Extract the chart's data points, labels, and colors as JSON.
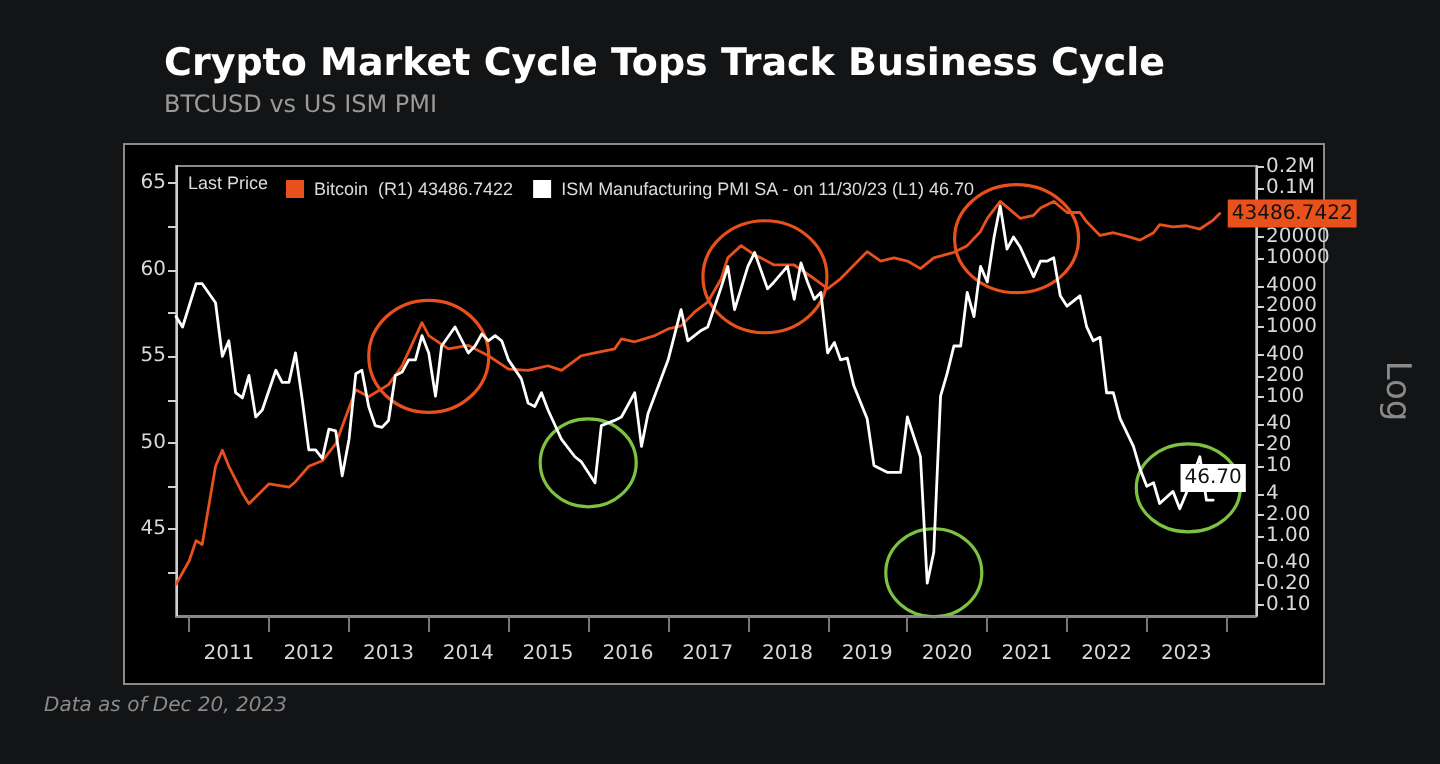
{
  "chart_data": {
    "type": "line",
    "title": "Crypto Market Cycle Tops Track Business Cycle",
    "subtitle": "BTCUSD vs US ISM PMI",
    "legend_title": "Last Price",
    "y2label": "Log",
    "legend": "top left",
    "marker": "none",
    "grid": false,
    "xlim": [
      "2010-11-01",
      "2024-05-15"
    ],
    "xticks": [
      {
        "value": "2011-01-01",
        "label": null
      },
      {
        "value": "2011-07-01",
        "label": "2011"
      },
      {
        "value": "2012-01-01",
        "label": null
      },
      {
        "value": "2012-07-01",
        "label": "2012"
      },
      {
        "value": "2013-01-01",
        "label": null
      },
      {
        "value": "2013-07-01",
        "label": "2013"
      },
      {
        "value": "2014-01-01",
        "label": null
      },
      {
        "value": "2014-07-01",
        "label": "2014"
      },
      {
        "value": "2015-01-01",
        "label": null
      },
      {
        "value": "2015-07-01",
        "label": "2015"
      },
      {
        "value": "2016-01-01",
        "label": null
      },
      {
        "value": "2016-07-01",
        "label": "2016"
      },
      {
        "value": "2017-01-01",
        "label": null
      },
      {
        "value": "2017-07-01",
        "label": "2017"
      },
      {
        "value": "2018-01-01",
        "label": null
      },
      {
        "value": "2018-07-01",
        "label": "2018"
      },
      {
        "value": "2019-01-01",
        "label": null
      },
      {
        "value": "2019-07-01",
        "label": "2019"
      },
      {
        "value": "2020-01-01",
        "label": null
      },
      {
        "value": "2020-07-01",
        "label": "2020"
      },
      {
        "value": "2021-01-01",
        "label": null
      },
      {
        "value": "2021-07-01",
        "label": "2021"
      },
      {
        "value": "2022-01-01",
        "label": null
      },
      {
        "value": "2022-07-01",
        "label": "2022"
      },
      {
        "value": "2023-01-01",
        "label": null
      },
      {
        "value": "2023-07-01",
        "label": "2023"
      },
      {
        "value": "2024-01-01",
        "label": null
      }
    ],
    "ylim": [
      40,
      66
    ],
    "yticks": [
      {
        "value": 42.5,
        "label": null
      },
      45,
      {
        "value": 47.5,
        "label": null
      },
      50,
      {
        "value": 52.5,
        "label": null
      },
      55,
      {
        "value": 57.5,
        "label": null
      },
      60,
      {
        "value": 62.5,
        "label": null
      },
      65
    ],
    "log": "y2",
    "y2lim": [
      0.07,
      210000
    ],
    "y2ticks": [
      {
        "value": 0.1,
        "label": "0.10"
      },
      {
        "value": 0.2,
        "label": "0.20"
      },
      {
        "value": 0.4,
        "label": "0.40"
      },
      {
        "value": 1,
        "label": "1.00"
      },
      {
        "value": 2,
        "label": "2.00"
      },
      4,
      10,
      20,
      40,
      100,
      200,
      400,
      1000,
      2000,
      4000,
      10000,
      20000,
      {
        "value": 100000,
        "label": "0.1M"
      },
      {
        "value": 200000,
        "label": "0.2M"
      }
    ],
    "annotations": [
      "Data as of Dec 20, 2023"
    ],
    "series": [
      {
        "name": "Bitcoin  (R1) 43486.7422",
        "color": "#e8501c",
        "axis": "y2",
        "x": [
          "2010-11",
          "2011-01",
          "2011-02",
          "2011-03",
          "2011-05",
          "2011-06",
          "2011-07",
          "2011-09",
          "2011-10",
          "2012-01",
          "2012-04",
          "2012-05",
          "2012-07",
          "2012-09",
          "2012-11",
          "2013-02",
          "2013-04",
          "2013-07",
          "2013-09",
          "2013-12",
          "2014-01",
          "2014-04",
          "2014-07",
          "2014-10",
          "2015-01",
          "2015-04",
          "2015-07",
          "2015-09",
          "2015-12",
          "2016-02",
          "2016-05",
          "2016-06",
          "2016-08",
          "2016-11",
          "2017-01",
          "2017-03",
          "2017-05",
          "2017-07",
          "2017-09",
          "2017-10",
          "2017-12",
          "2018-02",
          "2018-03",
          "2018-05",
          "2018-08",
          "2018-11",
          "2019-01",
          "2019-03",
          "2019-07",
          "2019-09",
          "2019-11",
          "2020-01",
          "2020-03",
          "2020-05",
          "2020-08",
          "2020-10",
          "2020-12",
          "2021-01",
          "2021-03",
          "2021-06",
          "2021-08",
          "2021-09",
          "2021-11",
          "2022-01",
          "2022-03",
          "2022-04",
          "2022-06",
          "2022-08",
          "2022-10",
          "2022-12",
          "2023-02",
          "2023-03",
          "2023-05",
          "2023-07",
          "2023-09",
          "2023-11",
          "2023-12"
        ],
        "values": [
          0.2,
          0.44,
          0.85,
          0.75,
          10,
          17,
          10,
          4.1,
          2.9,
          5.6,
          5,
          6,
          10,
          12,
          21,
          126,
          100,
          150,
          280,
          1170,
          760,
          490,
          550,
          390,
          250,
          240,
          280,
          240,
          390,
          430,
          490,
          680,
          620,
          760,
          950,
          1050,
          1650,
          2300,
          5000,
          10000,
          15000,
          11000,
          10000,
          7900,
          7900,
          5000,
          3600,
          5000,
          12300,
          9000,
          10000,
          9000,
          7000,
          10000,
          12000,
          15000,
          24000,
          37000,
          65000,
          37000,
          41000,
          52000,
          65000,
          45000,
          45000,
          33000,
          21000,
          23000,
          20500,
          18000,
          23000,
          30000,
          28000,
          29000,
          26000,
          35000,
          43486.7422
        ],
        "value_labels": [
          null,
          null,
          null,
          null,
          null,
          null,
          null,
          null,
          null,
          null,
          null,
          null,
          null,
          null,
          null,
          null,
          null,
          null,
          null,
          null,
          null,
          null,
          null,
          null,
          null,
          null,
          null,
          null,
          null,
          null,
          null,
          null,
          null,
          null,
          null,
          null,
          null,
          null,
          null,
          null,
          null,
          null,
          null,
          null,
          null,
          null,
          null,
          null,
          null,
          null,
          null,
          null,
          null,
          null,
          null,
          null,
          null,
          null,
          null,
          null,
          null,
          null,
          null,
          null,
          null,
          null,
          null,
          null,
          null,
          null,
          null,
          null,
          null,
          null,
          null,
          null,
          "43486.7422"
        ]
      },
      {
        "name": "ISM Manufacturing PMI SA - on 11/30/23 (L1) 46.70",
        "color": "#ffffff",
        "x": [
          "2010-11",
          "2010-12",
          "2011-02",
          "2011-03",
          "2011-05",
          "2011-06",
          "2011-07",
          "2011-08",
          "2011-09",
          "2011-10",
          "2011-11",
          "2011-12",
          "2012-02",
          "2012-03",
          "2012-04",
          "2012-05",
          "2012-06",
          "2012-07",
          "2012-08",
          "2012-09",
          "2012-10",
          "2012-11",
          "2012-12",
          "2013-01",
          "2013-02",
          "2013-03",
          "2013-04",
          "2013-05",
          "2013-06",
          "2013-07",
          "2013-08",
          "2013-09",
          "2013-10",
          "2013-11",
          "2013-12",
          "2014-01",
          "2014-02",
          "2014-03",
          "2014-05",
          "2014-07",
          "2014-08",
          "2014-09",
          "2014-10",
          "2014-11",
          "2014-12",
          "2015-01",
          "2015-03",
          "2015-04",
          "2015-05",
          "2015-06",
          "2015-07",
          "2015-09",
          "2015-11",
          "2015-12",
          "2016-02",
          "2016-03",
          "2016-05",
          "2016-06",
          "2016-08",
          "2016-09",
          "2016-10",
          "2017-01",
          "2017-03",
          "2017-04",
          "2017-06",
          "2017-07",
          "2017-09",
          "2017-10",
          "2017-11",
          "2018-01",
          "2018-02",
          "2018-04",
          "2018-05",
          "2018-07",
          "2018-08",
          "2018-09",
          "2018-10",
          "2018-11",
          "2018-12",
          "2019-01",
          "2019-02",
          "2019-03",
          "2019-04",
          "2019-05",
          "2019-07",
          "2019-08",
          "2019-09",
          "2019-10",
          "2019-12",
          "2020-01",
          "2020-03",
          "2020-04",
          "2020-05",
          "2020-06",
          "2020-07",
          "2020-08",
          "2020-09",
          "2020-10",
          "2020-11",
          "2020-12",
          "2021-01",
          "2021-02",
          "2021-03",
          "2021-04",
          "2021-05",
          "2021-06",
          "2021-08",
          "2021-09",
          "2021-10",
          "2021-11",
          "2021-12",
          "2022-01",
          "2022-03",
          "2022-04",
          "2022-05",
          "2022-06",
          "2022-07",
          "2022-08",
          "2022-09",
          "2022-11",
          "2022-12",
          "2023-01",
          "2023-02",
          "2023-03",
          "2023-05",
          "2023-06",
          "2023-07",
          "2023-09",
          "2023-10",
          "2023-11"
        ],
        "value_labels": [
          null,
          null,
          null,
          null,
          null,
          null,
          null,
          null,
          null,
          null,
          null,
          null,
          null,
          null,
          null,
          null,
          null,
          null,
          null,
          null,
          null,
          null,
          null,
          null,
          null,
          null,
          null,
          null,
          null,
          null,
          null,
          null,
          null,
          null,
          null,
          null,
          null,
          null,
          null,
          null,
          null,
          null,
          null,
          null,
          null,
          null,
          null,
          null,
          null,
          null,
          null,
          null,
          null,
          null,
          null,
          null,
          null,
          null,
          null,
          null,
          null,
          null,
          null,
          null,
          null,
          null,
          null,
          null,
          null,
          null,
          null,
          null,
          null,
          null,
          null,
          null,
          null,
          null,
          null,
          null,
          null,
          null,
          null,
          null,
          null,
          null,
          null,
          null,
          null,
          null,
          null,
          null,
          null,
          null,
          null,
          null,
          null,
          null,
          null,
          null,
          null,
          null,
          null,
          null,
          null,
          null,
          null,
          null,
          null,
          null,
          null,
          null,
          null,
          null,
          null,
          null,
          null,
          null,
          null,
          null,
          null,
          null,
          null,
          null,
          null,
          null,
          null,
          null,
          null,
          "46.70"
        ],
        "values": [
          57.3,
          56.7,
          59.2,
          59.2,
          58.1,
          55.0,
          55.9,
          52.9,
          52.6,
          53.9,
          51.5,
          51.9,
          54.2,
          53.5,
          53.5,
          55.2,
          52.5,
          49.6,
          49.6,
          49.1,
          50.8,
          50.7,
          48.1,
          50.2,
          54.0,
          54.2,
          52.1,
          51.0,
          50.9,
          51.3,
          53.9,
          54.1,
          54.8,
          54.8,
          56.2,
          55.2,
          52.7,
          55.6,
          56.7,
          55.2,
          55.6,
          56.3,
          55.9,
          56.2,
          55.9,
          54.8,
          53.7,
          52.3,
          52.1,
          52.9,
          51.9,
          50.2,
          49.2,
          48.9,
          47.7,
          51.0,
          51.3,
          51.5,
          52.9,
          49.8,
          51.7,
          54.8,
          57.7,
          55.9,
          56.5,
          56.7,
          59.0,
          60.2,
          57.7,
          60.2,
          61.0,
          58.9,
          59.3,
          60.2,
          58.3,
          60.4,
          59.3,
          58.3,
          58.7,
          55.2,
          55.8,
          54.8,
          54.9,
          53.3,
          51.4,
          48.7,
          48.5,
          48.3,
          48.3,
          51.5,
          49.2,
          41.9,
          43.7,
          52.7,
          54.0,
          55.6,
          55.6,
          58.7,
          57.3,
          60.2,
          59.3,
          61.9,
          63.7,
          61.2,
          61.9,
          61.3,
          59.6,
          60.5,
          60.5,
          60.7,
          58.5,
          57.9,
          58.5,
          56.7,
          55.9,
          56.1,
          52.9,
          52.9,
          51.4,
          49.8,
          48.5,
          47.5,
          47.7,
          46.5,
          47.2,
          46.2,
          47.1,
          49.2,
          46.7,
          46.7
        ]
      }
    ]
  }
}
